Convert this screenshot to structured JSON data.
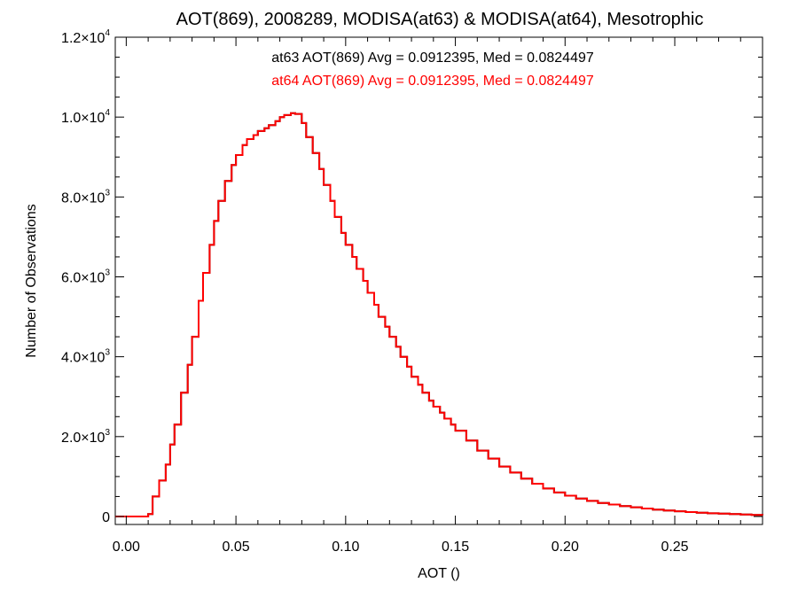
{
  "chart_data": {
    "type": "line",
    "title": "AOT(869), 2008289, MODISA(at63) & MODISA(at64), Mesotrophic",
    "xlabel": "AOT ()",
    "ylabel": "Number of Observations",
    "xlim": [
      -0.005,
      0.29
    ],
    "ylim": [
      -200,
      12000
    ],
    "x_ticks": [
      {
        "value": 0.0,
        "label": "0.00"
      },
      {
        "value": 0.05,
        "label": "0.05"
      },
      {
        "value": 0.1,
        "label": "0.10"
      },
      {
        "value": 0.15,
        "label": "0.15"
      },
      {
        "value": 0.2,
        "label": "0.20"
      },
      {
        "value": 0.25,
        "label": "0.25"
      }
    ],
    "y_ticks": [
      {
        "value": 0,
        "label": "0",
        "exp": ""
      },
      {
        "value": 2000,
        "label": "2.0×10",
        "exp": "3"
      },
      {
        "value": 4000,
        "label": "4.0×10",
        "exp": "3"
      },
      {
        "value": 6000,
        "label": "6.0×10",
        "exp": "3"
      },
      {
        "value": 8000,
        "label": "8.0×10",
        "exp": "3"
      },
      {
        "value": 10000,
        "label": "1.0×10",
        "exp": "4"
      },
      {
        "value": 12000,
        "label": "1.2×10",
        "exp": "4"
      }
    ],
    "annotations": [
      {
        "text": "at63 AOT(869) Avg = 0.0912395, Med = 0.0824497",
        "color": "#000000"
      },
      {
        "text": "at64 AOT(869) Avg = 0.0912395, Med = 0.0824497",
        "color": "#ff0000"
      }
    ],
    "series": [
      {
        "name": "at63",
        "color": "#000000",
        "x": [
          -0.005,
          0.0,
          0.005,
          0.01,
          0.012,
          0.015,
          0.018,
          0.02,
          0.022,
          0.025,
          0.028,
          0.03,
          0.033,
          0.035,
          0.038,
          0.04,
          0.042,
          0.045,
          0.048,
          0.05,
          0.053,
          0.055,
          0.058,
          0.06,
          0.063,
          0.065,
          0.068,
          0.07,
          0.072,
          0.075,
          0.077,
          0.08,
          0.082,
          0.085,
          0.088,
          0.09,
          0.093,
          0.095,
          0.098,
          0.1,
          0.103,
          0.105,
          0.108,
          0.11,
          0.113,
          0.115,
          0.118,
          0.12,
          0.123,
          0.125,
          0.128,
          0.13,
          0.133,
          0.135,
          0.138,
          0.14,
          0.143,
          0.145,
          0.148,
          0.15,
          0.155,
          0.16,
          0.165,
          0.17,
          0.175,
          0.18,
          0.185,
          0.19,
          0.195,
          0.2,
          0.205,
          0.21,
          0.215,
          0.22,
          0.225,
          0.23,
          0.235,
          0.24,
          0.245,
          0.25,
          0.255,
          0.26,
          0.265,
          0.27,
          0.275,
          0.28,
          0.285,
          0.29
        ],
        "y": [
          0,
          0,
          0,
          60,
          500,
          900,
          1300,
          1800,
          2300,
          3100,
          3800,
          4500,
          5400,
          6100,
          6800,
          7400,
          7900,
          8400,
          8800,
          9050,
          9300,
          9450,
          9550,
          9650,
          9720,
          9800,
          9900,
          10000,
          10050,
          10100,
          10080,
          9850,
          9500,
          9100,
          8700,
          8300,
          7900,
          7500,
          7100,
          6800,
          6500,
          6200,
          5900,
          5600,
          5300,
          5000,
          4750,
          4500,
          4250,
          4000,
          3750,
          3500,
          3300,
          3100,
          2900,
          2750,
          2600,
          2450,
          2300,
          2150,
          1900,
          1650,
          1450,
          1250,
          1100,
          950,
          820,
          700,
          600,
          520,
          450,
          390,
          340,
          300,
          260,
          230,
          200,
          170,
          150,
          130,
          110,
          95,
          80,
          70,
          60,
          50,
          40,
          35
        ]
      },
      {
        "name": "at64",
        "color": "#ff0000",
        "x": [
          -0.005,
          0.0,
          0.005,
          0.01,
          0.012,
          0.015,
          0.018,
          0.02,
          0.022,
          0.025,
          0.028,
          0.03,
          0.033,
          0.035,
          0.038,
          0.04,
          0.042,
          0.045,
          0.048,
          0.05,
          0.053,
          0.055,
          0.058,
          0.06,
          0.063,
          0.065,
          0.068,
          0.07,
          0.072,
          0.075,
          0.077,
          0.08,
          0.082,
          0.085,
          0.088,
          0.09,
          0.093,
          0.095,
          0.098,
          0.1,
          0.103,
          0.105,
          0.108,
          0.11,
          0.113,
          0.115,
          0.118,
          0.12,
          0.123,
          0.125,
          0.128,
          0.13,
          0.133,
          0.135,
          0.138,
          0.14,
          0.143,
          0.145,
          0.148,
          0.15,
          0.155,
          0.16,
          0.165,
          0.17,
          0.175,
          0.18,
          0.185,
          0.19,
          0.195,
          0.2,
          0.205,
          0.21,
          0.215,
          0.22,
          0.225,
          0.23,
          0.235,
          0.24,
          0.245,
          0.25,
          0.255,
          0.26,
          0.265,
          0.27,
          0.275,
          0.28,
          0.285,
          0.29
        ],
        "y": [
          0,
          0,
          0,
          60,
          500,
          900,
          1300,
          1800,
          2300,
          3100,
          3800,
          4500,
          5400,
          6100,
          6800,
          7400,
          7900,
          8400,
          8800,
          9050,
          9300,
          9450,
          9550,
          9650,
          9720,
          9800,
          9900,
          10000,
          10050,
          10100,
          10080,
          9850,
          9500,
          9100,
          8700,
          8300,
          7900,
          7500,
          7100,
          6800,
          6500,
          6200,
          5900,
          5600,
          5300,
          5000,
          4750,
          4500,
          4250,
          4000,
          3750,
          3500,
          3300,
          3100,
          2900,
          2750,
          2600,
          2450,
          2300,
          2150,
          1900,
          1650,
          1450,
          1250,
          1100,
          950,
          820,
          700,
          600,
          520,
          450,
          390,
          340,
          300,
          260,
          230,
          200,
          170,
          150,
          130,
          110,
          95,
          80,
          70,
          60,
          50,
          40,
          35
        ]
      }
    ]
  }
}
